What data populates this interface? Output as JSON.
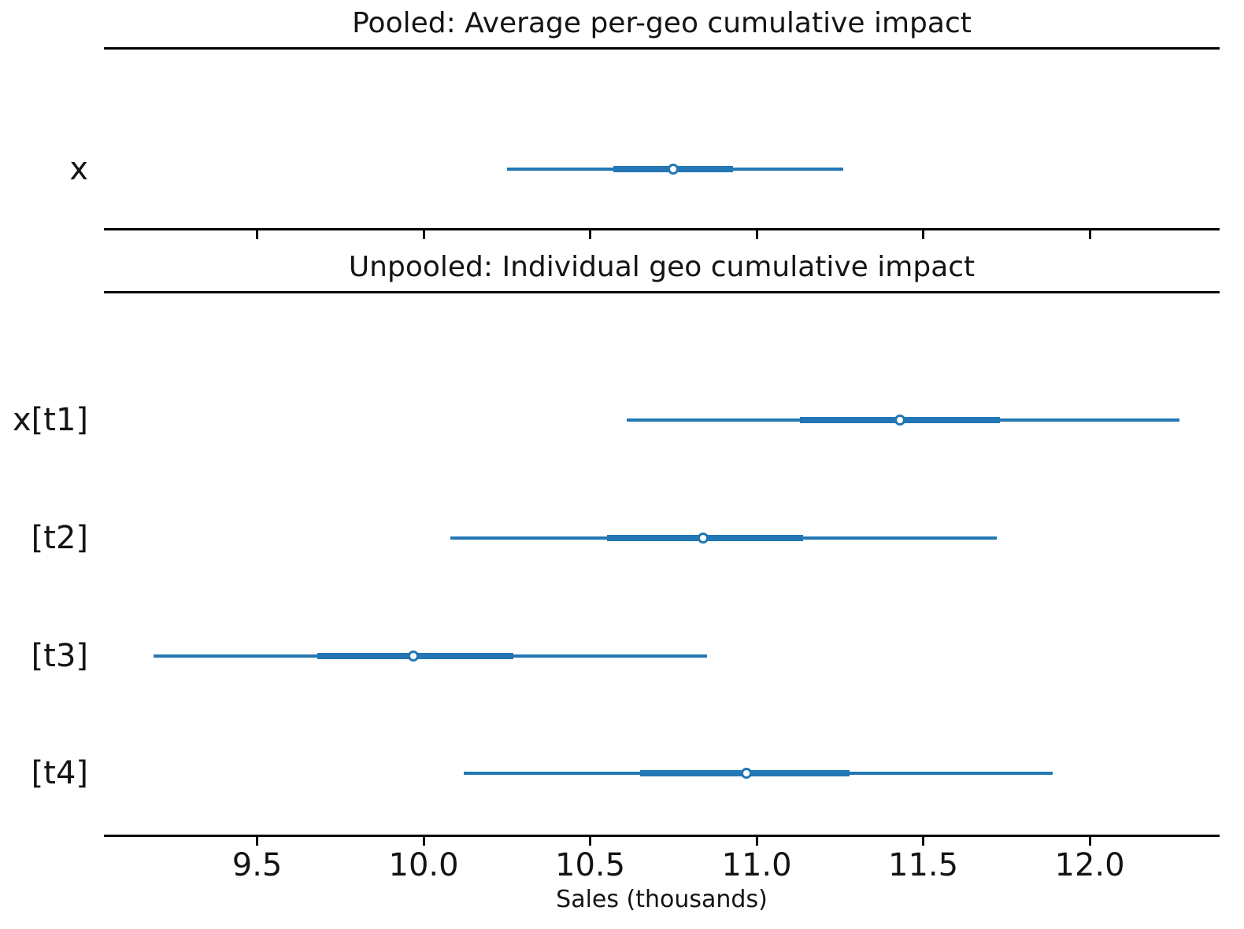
{
  "chart_data": {
    "type": "forest",
    "xlabel": "Sales (thousands)",
    "xlim": [
      9.04,
      12.39
    ],
    "x_ticks": [
      {
        "value": 9.5,
        "label": "9.5"
      },
      {
        "value": 10.0,
        "label": "10.0"
      },
      {
        "value": 10.5,
        "label": "10.5"
      },
      {
        "value": 11.0,
        "label": "11.0"
      },
      {
        "value": 11.5,
        "label": "11.5"
      },
      {
        "value": 12.0,
        "label": "12.0"
      }
    ],
    "interval_color": "#2277b4",
    "axis_color": "#000000",
    "marker_fill": "#ffffff",
    "panels": [
      {
        "title": "Pooled: Average per-geo cumulative impact",
        "rows": [
          {
            "label": "x",
            "lower": 10.25,
            "q1": 10.57,
            "median": 10.75,
            "q3": 10.93,
            "upper": 11.26
          }
        ]
      },
      {
        "title": "Unpooled: Individual geo cumulative impact",
        "rows": [
          {
            "label": "x[t1]",
            "lower": 10.61,
            "q1": 11.13,
            "median": 11.43,
            "q3": 11.73,
            "upper": 12.27
          },
          {
            "label": "[t2]",
            "lower": 10.08,
            "q1": 10.55,
            "median": 10.84,
            "q3": 11.14,
            "upper": 11.72
          },
          {
            "label": "[t3]",
            "lower": 9.19,
            "q1": 9.68,
            "median": 9.97,
            "q3": 10.27,
            "upper": 10.85
          },
          {
            "label": "[t4]",
            "lower": 10.12,
            "q1": 10.65,
            "median": 10.97,
            "q3": 11.28,
            "upper": 11.89
          }
        ]
      }
    ]
  }
}
